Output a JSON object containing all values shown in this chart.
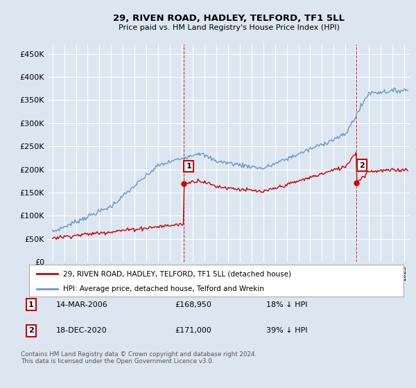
{
  "title": "29, RIVEN ROAD, HADLEY, TELFORD, TF1 5LL",
  "subtitle": "Price paid vs. HM Land Registry's House Price Index (HPI)",
  "red_label": "29, RIVEN ROAD, HADLEY, TELFORD, TF1 5LL (detached house)",
  "blue_label": "HPI: Average price, detached house, Telford and Wrekin",
  "footnote": "Contains HM Land Registry data © Crown copyright and database right 2024.\nThis data is licensed under the Open Government Licence v3.0.",
  "annotation1": {
    "label": "1",
    "date": "14-MAR-2006",
    "price": "£168,950",
    "note": "18% ↓ HPI"
  },
  "annotation2": {
    "label": "2",
    "date": "18-DEC-2020",
    "price": "£171,000",
    "note": "39% ↓ HPI"
  },
  "ylim": [
    0,
    470000
  ],
  "yticks": [
    0,
    50000,
    100000,
    150000,
    200000,
    250000,
    300000,
    350000,
    400000,
    450000
  ],
  "ytick_labels": [
    "£0",
    "£50K",
    "£100K",
    "£150K",
    "£200K",
    "£250K",
    "£300K",
    "£350K",
    "£400K",
    "£450K"
  ],
  "red_color": "#cc0000",
  "blue_color": "#6699cc",
  "background_color": "#dce6f1",
  "grid_color": "#ffffff",
  "ann1_year": 2006.21,
  "ann2_year": 2020.96,
  "ann1_price": 168950,
  "ann2_price": 171000
}
